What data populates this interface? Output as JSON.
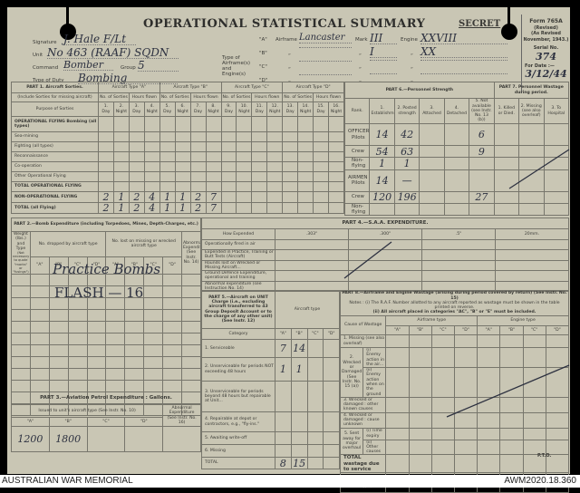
{
  "header": {
    "title": "OPERATIONAL STATISTICAL SUMMARY",
    "secret": "SECRET"
  },
  "form": {
    "name": "Form 765A",
    "revised": "(Revised)",
    "as_revised": "(As Revised November, 1943.)",
    "serial_label": "Serial No.",
    "serial": "374",
    "for_date_label": "For Date :—",
    "for_date": "3/12/44"
  },
  "fields": {
    "signature_label": "Signature",
    "signature": "J. Hale F/Lt",
    "unit_label": "Unit",
    "unit": "No 463 (RAAF) SQDN",
    "command_label": "Command",
    "command": "Bomber",
    "group_label": "Group",
    "group": "5",
    "duty_label": "Type of Duty",
    "duty": "Bombing"
  },
  "airframe": {
    "label": "Type of Airframe(s) and Engine(s)",
    "airframe_label": "Airframe",
    "mark_label": "Mark",
    "engine_label": "Engine",
    "ditto": "„",
    "rows": [
      {
        "tag": "\"A\"",
        "airframe": "Lancaster",
        "mark": "III",
        "engine": "XXVIII"
      },
      {
        "tag": "\"B\"",
        "airframe": "",
        "mark": "I",
        "engine": "XX"
      },
      {
        "tag": "\"C\"",
        "airframe": "",
        "mark": "",
        "engine": ""
      },
      {
        "tag": "\"D\"",
        "airframe": "",
        "mark": "",
        "engine": ""
      }
    ]
  },
  "part1": {
    "title": "PART 1. Aircraft Sorties.",
    "note": "(Include Sorties for missing aircraft)",
    "purpose": "Purpose of Sorties",
    "types": [
      "Aircraft Type \"A\"",
      "Aircraft Type \"B\"",
      "Aircraft Type \"C\"",
      "Aircraft Type \"D\""
    ],
    "sub": [
      "No. of Sorties",
      "Hours flown"
    ],
    "cols": [
      "1. Day",
      "2. Night",
      "3. Day",
      "4. Night",
      "5. Day",
      "6. Night",
      "7. Day",
      "8. Night",
      "9. Day",
      "10. Night",
      "11. Day",
      "12. Night",
      "13. Day",
      "14. Night",
      "15. Day",
      "16. Night"
    ],
    "rows": [
      {
        "label": "OPERATIONAL FLYING Bombing (all types)",
        "values": [
          "",
          "",
          "",
          "",
          "",
          "",
          "",
          "",
          "",
          "",
          "",
          "",
          "",
          "",
          "",
          ""
        ]
      },
      {
        "label": "Sea-mining",
        "values": [
          "",
          "",
          "",
          "",
          "",
          "",
          "",
          "",
          "",
          "",
          "",
          "",
          "",
          "",
          "",
          ""
        ]
      },
      {
        "label": "Fighting (all types)",
        "values": [
          "",
          "",
          "",
          "",
          "",
          "",
          "",
          "",
          "",
          "",
          "",
          "",
          "",
          "",
          "",
          ""
        ]
      },
      {
        "label": "Reconnaissance",
        "values": [
          "",
          "",
          "",
          "",
          "",
          "",
          "",
          "",
          "",
          "",
          "",
          "",
          "",
          "",
          "",
          ""
        ]
      },
      {
        "label": "Co-operation",
        "values": [
          "",
          "",
          "",
          "",
          "",
          "",
          "",
          "",
          "",
          "",
          "",
          "",
          "",
          "",
          "",
          ""
        ]
      },
      {
        "label": "Other Operational Flying",
        "values": [
          "",
          "",
          "",
          "",
          "",
          "",
          "",
          "",
          "",
          "",
          "",
          "",
          "",
          "",
          "",
          ""
        ]
      },
      {
        "label": "TOTAL OPERATIONAL FLYING",
        "values": [
          "",
          "",
          "",
          "",
          "",
          "",
          "",
          "",
          "",
          "",
          "",
          "",
          "",
          "",
          "",
          ""
        ]
      },
      {
        "label": "NON-OPERATIONAL FLYING",
        "values": [
          "2",
          "1",
          "2",
          "4",
          "1",
          "1",
          "2",
          "7",
          "",
          "",
          "",
          "",
          "",
          "",
          "",
          ""
        ]
      },
      {
        "label": "TOTAL (all Flying)",
        "values": [
          "2",
          "1",
          "2",
          "4",
          "1",
          "1",
          "2",
          "7",
          "",
          "",
          "",
          "",
          "",
          "",
          "",
          ""
        ]
      }
    ]
  },
  "part6": {
    "title": "PART 6.—Personnel Strength",
    "rank": "Rank.",
    "cols": [
      "1. Establishment",
      "2. Posted strength",
      "3. Attached",
      "4. Detached",
      "5. Not available (see Instr. No. 13 (b))"
    ],
    "groups": [
      "OFFICERS",
      "AIRMEN"
    ],
    "rows": [
      {
        "label": "Pilots",
        "values": [
          "14",
          "42",
          "",
          "",
          "6"
        ]
      },
      {
        "label": "Crew",
        "values": [
          "54",
          "63",
          "",
          "",
          "9"
        ]
      },
      {
        "label": "Non-flying",
        "values": [
          "1",
          "1",
          "",
          "",
          ""
        ]
      },
      {
        "label": "Pilots",
        "values": [
          "14",
          "—",
          "",
          "",
          ""
        ]
      },
      {
        "label": "Crew",
        "values": [
          "120",
          "196",
          "",
          "",
          "27"
        ]
      },
      {
        "label": "Non-flying",
        "values": [
          "",
          "",
          "",
          "",
          ""
        ]
      }
    ]
  },
  "part7": {
    "title": "PART 7. Personnel Wastage during period.",
    "cols": [
      "1. Killed or Died.",
      "2. Missing (see also overleaf)",
      "3. To Hospital"
    ]
  },
  "part2": {
    "title": "PART 2.—Bomb Expenditure (including Torpedoes, Mines, Depth-Charges, etc.)",
    "weight": "Weight (lbs.) and Type",
    "weight_note": "(Not necessary to quote \"marks\" or \"fusings\")",
    "dropped": "No. dropped by aircraft type",
    "lost": "No. lost on missing or wrecked aircraft type",
    "abnormal": "Abnormal Expenditure (See Instr. No. 14)",
    "letters": [
      "\"A\"",
      "\"B\"",
      "\"C\"",
      "\"D\""
    ],
    "entries": [
      "Practice Bombs",
      "FLASH — 16"
    ]
  },
  "part4": {
    "title": "PART 4.—S.A.A. EXPENDITURE.",
    "how": "How Expended",
    "calibres": [
      ".303\"",
      ".300\"",
      ".5\"",
      "20mm."
    ],
    "rows": [
      "Operationally fired in air",
      "Expended in Practice, Training or Butt Tests (Aircraft)",
      "Rounds lost on Wrecked or Missing Aircraft...",
      "Ground Defence Expenditure, operational and training",
      "Abnormal expenditure (see Instruction No. 14)"
    ]
  },
  "part5": {
    "title": "PART 5.—Aircraft on UNIT Charge (i.e., excluding aircraft transferred to 43 Group Deposit Account or to the charge of any other unit) (See Instr. 12)",
    "aircraft_type": "Aircraft type",
    "category": "Category",
    "letters": [
      "\"A\"",
      "\"B\"",
      "\"C\"",
      "\"D\""
    ],
    "rows": [
      {
        "label": "1. Serviceable",
        "values": [
          "7",
          "14",
          "",
          ""
        ]
      },
      {
        "label": "2. Unserviceable for periods NOT exceeding 48 hours",
        "values": [
          "1",
          "1",
          "",
          ""
        ]
      },
      {
        "label": "3. Unserviceable for periods beyond 48 hours but repairable at Unit...",
        "values": [
          "",
          "",
          "",
          ""
        ]
      },
      {
        "label": "4. Repairable at depot or contractors, e.g., \"fly-ins.\"",
        "values": [
          "",
          "",
          "",
          ""
        ]
      },
      {
        "label": "5. Awaiting write-off",
        "values": [
          "",
          "",
          "",
          ""
        ]
      },
      {
        "label": "6. Missing",
        "values": [
          "",
          "",
          "",
          ""
        ]
      },
      {
        "label": "TOTAL",
        "values": [
          "8",
          "15",
          "",
          ""
        ]
      }
    ]
  },
  "part8": {
    "title": "PART 8.—Airframe and Engine Wastage (arising during period covered by return) (See Instr. No. 15)",
    "note1": "Notes : (i) The R.A.F. Number allotted to any aircraft reported as wastage must be shown in the table printed on reverse.",
    "note2": "(ii) All aircraft placed in categories \"AC\", \"B\" or \"E\" must be included.",
    "cause": "Cause of Wastage",
    "airframe_type": "Airframe type",
    "engine_type": "Engine type",
    "letters": [
      "\"A\"",
      "\"B\"",
      "\"C\"",
      "\"D\""
    ],
    "missing": "1. Missing (see also overleaf)",
    "wrecked": "2. Wrecked or Damaged (See Instr. No. 15 (a))",
    "wrecked_i": "(i) Enemy action in the air...",
    "wrecked_ii": "(ii) Enemy action when on the ground",
    "other_known": "3. Wrecked or damaged : other known causes",
    "unknown": "4. Wrecked or damaged : cause unknown",
    "sent": "5. Sent away for major overhaul",
    "sent_i": "(i) Time expiry",
    "sent_ii": "(ii) Other causes",
    "total": "TOTAL wastage due to service",
    "reequip": "Sent away (on re-equipping with another type, etc.)"
  },
  "part3": {
    "title": "PART 3.—Aviation Petrol Expenditure : Gallons.",
    "issued": "Issued to unit's aircraft type (See Instr. No. 10)",
    "abnormal": "Abnormal Expenditure (See Instr. No. 16)",
    "letters": [
      "\"A\"",
      "\"B\"",
      "\"C\"",
      "\"D\""
    ],
    "values": [
      "1200",
      "1800",
      "",
      ""
    ]
  },
  "pto": "P.T.O.",
  "footer": {
    "left": "AUSTRALIAN WAR MEMORIAL",
    "right": "AWM2020.18.360"
  }
}
